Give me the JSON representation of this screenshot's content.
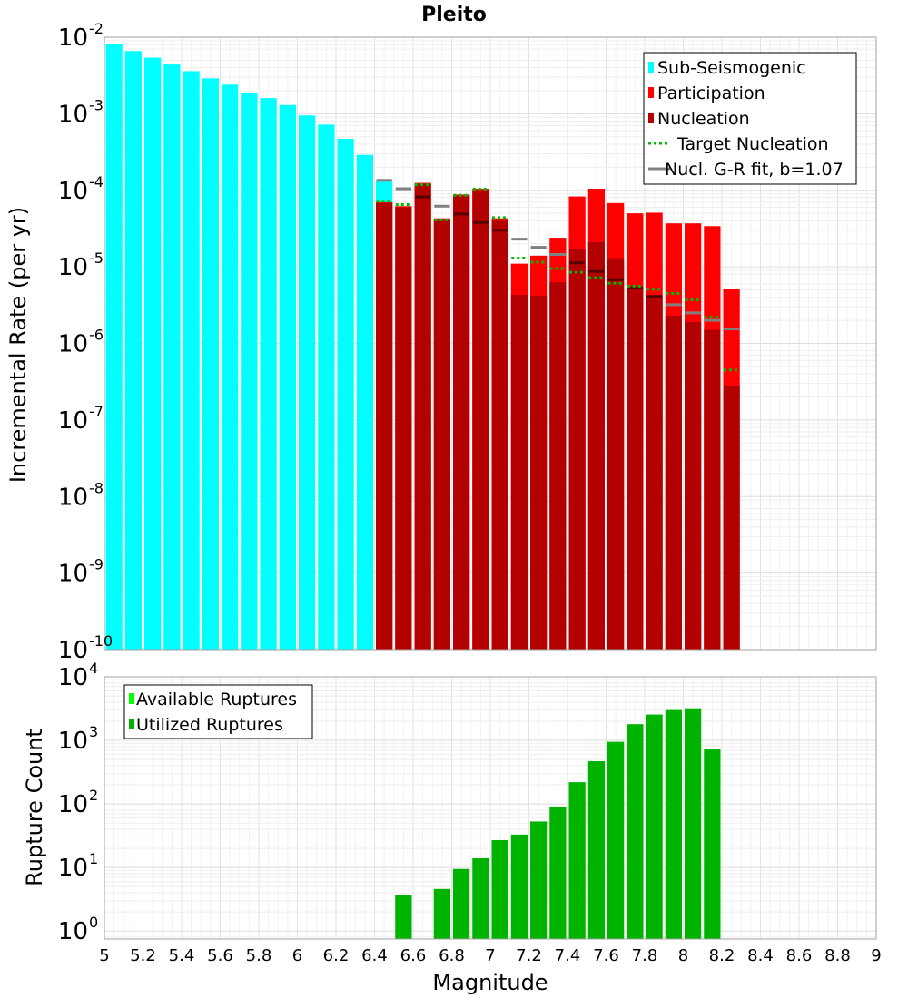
{
  "chart_data": [
    {
      "type": "bar",
      "title": "Pleito",
      "ylabel": "Incremental Rate (per yr)",
      "xlabel": "",
      "xlim": [
        5,
        9
      ],
      "ylim": [
        1e-10,
        0.01
      ],
      "yscale": "log",
      "ytick_mantissa": "10",
      "yticks": [
        {
          "exp": "-10",
          "value": 1e-10
        },
        {
          "exp": "-9",
          "value": 1e-09
        },
        {
          "exp": "-8",
          "value": 1e-08
        },
        {
          "exp": "-7",
          "value": 1e-07
        },
        {
          "exp": "-6",
          "value": 1e-06
        },
        {
          "exp": "-5",
          "value": 1e-05
        },
        {
          "exp": "-4",
          "value": 0.0001
        },
        {
          "exp": "-3",
          "value": 0.001
        },
        {
          "exp": "-2",
          "value": 0.01
        }
      ],
      "grid": true,
      "legend_position": "top-right",
      "legend": [
        {
          "label": "Sub-Seismogenic",
          "style": "bar",
          "color": "#00ffff"
        },
        {
          "label": "Participation",
          "style": "bar",
          "color": "#ff0000"
        },
        {
          "label": "Nucleation",
          "style": "bar",
          "color": "#b30000"
        },
        {
          "label": "Target Nucleation",
          "style": "dotted",
          "color": "#00bb00"
        },
        {
          "label": "Nucl. G-R fit, b=1.07",
          "style": "line",
          "color": "#808080"
        }
      ],
      "series": [
        {
          "key": "sub",
          "color": "#00ffff",
          "x": [
            5.05,
            5.15,
            5.25,
            5.35,
            5.45,
            5.55,
            5.65,
            5.75,
            5.85,
            5.95,
            6.05,
            6.15,
            6.25,
            6.35,
            6.45
          ],
          "values": [
            0.0082,
            0.0066,
            0.0054,
            0.0044,
            0.0036,
            0.0029,
            0.0024,
            0.0019,
            0.0016,
            0.0013,
            0.00095,
            0.00072,
            0.00047,
            0.00029,
            0.00013
          ]
        },
        {
          "key": "part",
          "color": "#ff0000",
          "x": [
            6.45,
            6.55,
            6.65,
            6.75,
            6.85,
            6.95,
            7.05,
            7.15,
            7.25,
            7.35,
            7.45,
            7.55,
            7.65,
            7.75,
            7.85,
            7.95,
            8.05,
            8.15,
            8.25
          ],
          "values": [
            7e-05,
            6.2e-05,
            0.000125,
            4.3e-05,
            8.8e-05,
            0.000105,
            4.3e-05,
            1.1e-05,
            1.4e-05,
            2.4e-05,
            8.3e-05,
            0.000105,
            6.8e-05,
            5e-05,
            5.1e-05,
            3.7e-05,
            3.7e-05,
            3.4e-05,
            5.1e-06
          ]
        },
        {
          "key": "nucl",
          "color": "#b30000",
          "x": [
            6.45,
            6.55,
            6.65,
            6.75,
            6.85,
            6.95,
            7.05,
            7.15,
            7.25,
            7.35,
            7.45,
            7.55,
            7.65,
            7.75,
            7.85,
            7.95,
            8.05,
            8.15,
            8.25
          ],
          "values": [
            6.8e-05,
            6e-05,
            0.00012,
            4.1e-05,
            8.4e-05,
            0.0001,
            4e-05,
            4.3e-06,
            4.2e-06,
            6.3e-06,
            1.7e-05,
            2.1e-05,
            1.3e-05,
            5.5e-06,
            4.2e-06,
            2.3e-06,
            1.9e-06,
            1.5e-06,
            2.8e-07
          ]
        },
        {
          "key": "target",
          "color": "#00bb00",
          "x": [
            6.45,
            6.55,
            6.65,
            6.75,
            6.85,
            6.95,
            7.05,
            7.15,
            7.25,
            7.35,
            7.45,
            7.55,
            7.65,
            7.75,
            7.85,
            7.95,
            8.05,
            8.15,
            8.25
          ],
          "values": [
            7.2e-05,
            6.5e-05,
            0.000118,
            4.1e-05,
            8.6e-05,
            0.000104,
            4.4e-05,
            1.3e-05,
            1.15e-05,
            9.5e-06,
            8.5e-06,
            7.2e-06,
            6.1e-06,
            5.6e-06,
            5.1e-06,
            4.5e-06,
            3.7e-06,
            2.2e-06,
            4.5e-07
          ]
        },
        {
          "key": "gr",
          "color": "#808080",
          "x": [
            6.45,
            6.55,
            6.65,
            6.75,
            6.85,
            6.95,
            7.05,
            7.15,
            7.25,
            7.35,
            7.45,
            7.55,
            7.65,
            7.75,
            7.85,
            7.95,
            8.05,
            8.15,
            8.25
          ],
          "values": [
            0.000135,
            0.000105,
            8.2e-05,
            6.2e-05,
            4.9e-05,
            3.8e-05,
            3e-05,
            2.3e-05,
            1.8e-05,
            1.45e-05,
            1.13e-05,
            8.7e-06,
            6.8e-06,
            5.3e-06,
            4.1e-06,
            3.2e-06,
            2.5e-06,
            2e-06,
            1.55e-06
          ]
        }
      ]
    },
    {
      "type": "bar",
      "title": "",
      "ylabel": "Rupture Count",
      "xlabel": "Magnitude",
      "xlim": [
        5,
        9
      ],
      "ylim": [
        0.75,
        10000
      ],
      "yscale": "log",
      "ytick_mantissa": "10",
      "yticks": [
        {
          "exp": "0",
          "value": 1
        },
        {
          "exp": "1",
          "value": 10
        },
        {
          "exp": "2",
          "value": 100
        },
        {
          "exp": "3",
          "value": 1000
        },
        {
          "exp": "4",
          "value": 10000
        }
      ],
      "xticks": [
        "5",
        "5.2",
        "5.4",
        "5.6",
        "5.8",
        "6",
        "6.2",
        "6.4",
        "6.6",
        "6.8",
        "7",
        "7.2",
        "7.4",
        "7.6",
        "7.8",
        "8",
        "8.2",
        "8.4",
        "8.6",
        "8.8",
        "9"
      ],
      "grid": true,
      "legend_position": "top-left",
      "legend": [
        {
          "label": "Available Ruptures",
          "style": "bar",
          "color": "#00ff00"
        },
        {
          "label": "Utilized Ruptures",
          "style": "bar",
          "color": "#00b300"
        }
      ],
      "series": [
        {
          "key": "utilized",
          "color": "#00b300",
          "x": [
            6.55,
            6.75,
            6.85,
            6.95,
            7.05,
            7.15,
            7.25,
            7.35,
            7.45,
            7.55,
            7.65,
            7.75,
            7.85,
            7.95,
            8.05,
            8.15
          ],
          "values": [
            3.7,
            4.6,
            9.5,
            14,
            27,
            33,
            53,
            90,
            220,
            470,
            950,
            1800,
            2550,
            3000,
            3200,
            720
          ]
        }
      ]
    }
  ]
}
